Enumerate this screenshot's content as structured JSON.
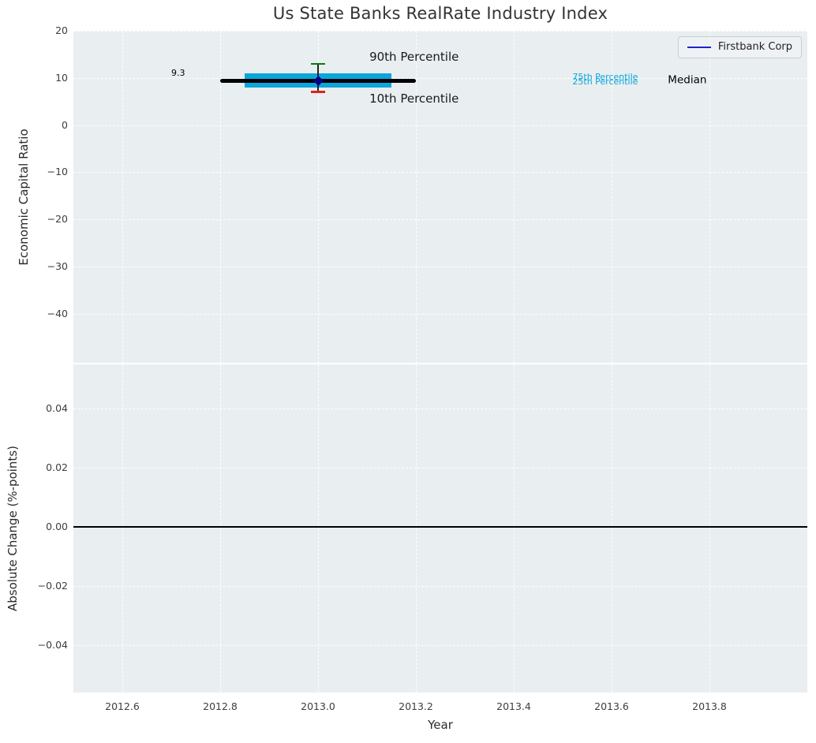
{
  "chart_data": [
    {
      "type": "line",
      "title": "Us State Banks RealRate Industry Index",
      "xlabel": "",
      "ylabel": "Economic Capital Ratio",
      "xlim": [
        2012.5,
        2014.0
      ],
      "ylim": [
        -50.4,
        20
      ],
      "grid": true,
      "xtick_labels_visible": false,
      "background": "#e9eef0",
      "yticks": [
        {
          "value": 20,
          "label": "20"
        },
        {
          "value": 10,
          "label": "10"
        },
        {
          "value": 0,
          "label": "0"
        },
        {
          "value": -10,
          "label": "−10"
        },
        {
          "value": -20,
          "label": "−20"
        },
        {
          "value": -30,
          "label": "−30"
        },
        {
          "value": -40,
          "label": "−40"
        }
      ],
      "xticks": [
        {
          "value": 2012.6,
          "label": "2012.6"
        },
        {
          "value": 2012.8,
          "label": "2012.8"
        },
        {
          "value": 2013.0,
          "label": "2013.0"
        },
        {
          "value": 2013.2,
          "label": "2013.2"
        },
        {
          "value": 2013.4,
          "label": "2013.4"
        },
        {
          "value": 2013.6,
          "label": "2013.6"
        },
        {
          "value": 2013.8,
          "label": "2013.8"
        }
      ],
      "legend": {
        "position": "upper right",
        "entries": [
          {
            "label": "Firstbank Corp",
            "color": "#2222cc"
          }
        ]
      },
      "median_line": {
        "name": "Median",
        "y": 9.3,
        "x_start": 2012.8,
        "x_end": 2013.2,
        "color": "#000000"
      },
      "iqr_band": {
        "name": "25th-75th Percentile band",
        "x_start": 2012.85,
        "x_end": 2013.15,
        "y_top": 11.0,
        "y_bottom": 8.0,
        "color": "#0ba6dc"
      },
      "whisker": {
        "x": 2013.0,
        "line_color": "#222222",
        "p90": {
          "label": "90th Percentile",
          "y": 13.0,
          "color": "#008000"
        },
        "p10": {
          "label": "10th Percentile",
          "y": 7.0,
          "color": "#dd2222"
        }
      },
      "company_point": {
        "name": "Firstbank Corp",
        "x": 2013.0,
        "y": 9.3,
        "color": "#000080",
        "value_label": "9.3"
      },
      "annotations": [
        {
          "text": "9.3",
          "x": 2012.7,
          "y": 11.0,
          "color": "#000000",
          "size": "sm"
        },
        {
          "text": "90th Percentile",
          "x": 2013.105,
          "y": 14.5,
          "color": "#1a1a1a",
          "size": "lg"
        },
        {
          "text": "10th Percentile",
          "x": 2013.105,
          "y": 5.6,
          "color": "#1a1a1a",
          "size": "lg"
        },
        {
          "text": "75th Percentile",
          "x": 2013.52,
          "y": 10.1,
          "color": "#0ba6dc",
          "size": "sm"
        },
        {
          "text": "25th Percentile",
          "x": 2013.52,
          "y": 9.1,
          "color": "#0ba6dc",
          "size": "sm"
        },
        {
          "text": "Median",
          "x": 2013.715,
          "y": 9.4,
          "color": "#000000",
          "size": "md"
        }
      ]
    },
    {
      "type": "line",
      "title": "",
      "xlabel": "Year",
      "ylabel": "Absolute Change (%-points)",
      "xlim": [
        2012.5,
        2014.0
      ],
      "ylim": [
        -0.056,
        0.055
      ],
      "grid": true,
      "xtick_labels_visible": true,
      "background": "#e9eef0",
      "yticks": [
        {
          "value": 0.04,
          "label": "0.04"
        },
        {
          "value": 0.02,
          "label": "0.02"
        },
        {
          "value": 0.0,
          "label": "0.00"
        },
        {
          "value": -0.02,
          "label": "−0.02"
        },
        {
          "value": -0.04,
          "label": "−0.04"
        }
      ],
      "xticks": [
        {
          "value": 2012.6,
          "label": "2012.6"
        },
        {
          "value": 2012.8,
          "label": "2012.8"
        },
        {
          "value": 2013.0,
          "label": "2013.0"
        },
        {
          "value": 2013.2,
          "label": "2013.2"
        },
        {
          "value": 2013.4,
          "label": "2013.4"
        },
        {
          "value": 2013.6,
          "label": "2013.6"
        },
        {
          "value": 2013.8,
          "label": "2013.8"
        }
      ],
      "zero_line": {
        "y": 0.0,
        "color": "#000000"
      }
    }
  ]
}
